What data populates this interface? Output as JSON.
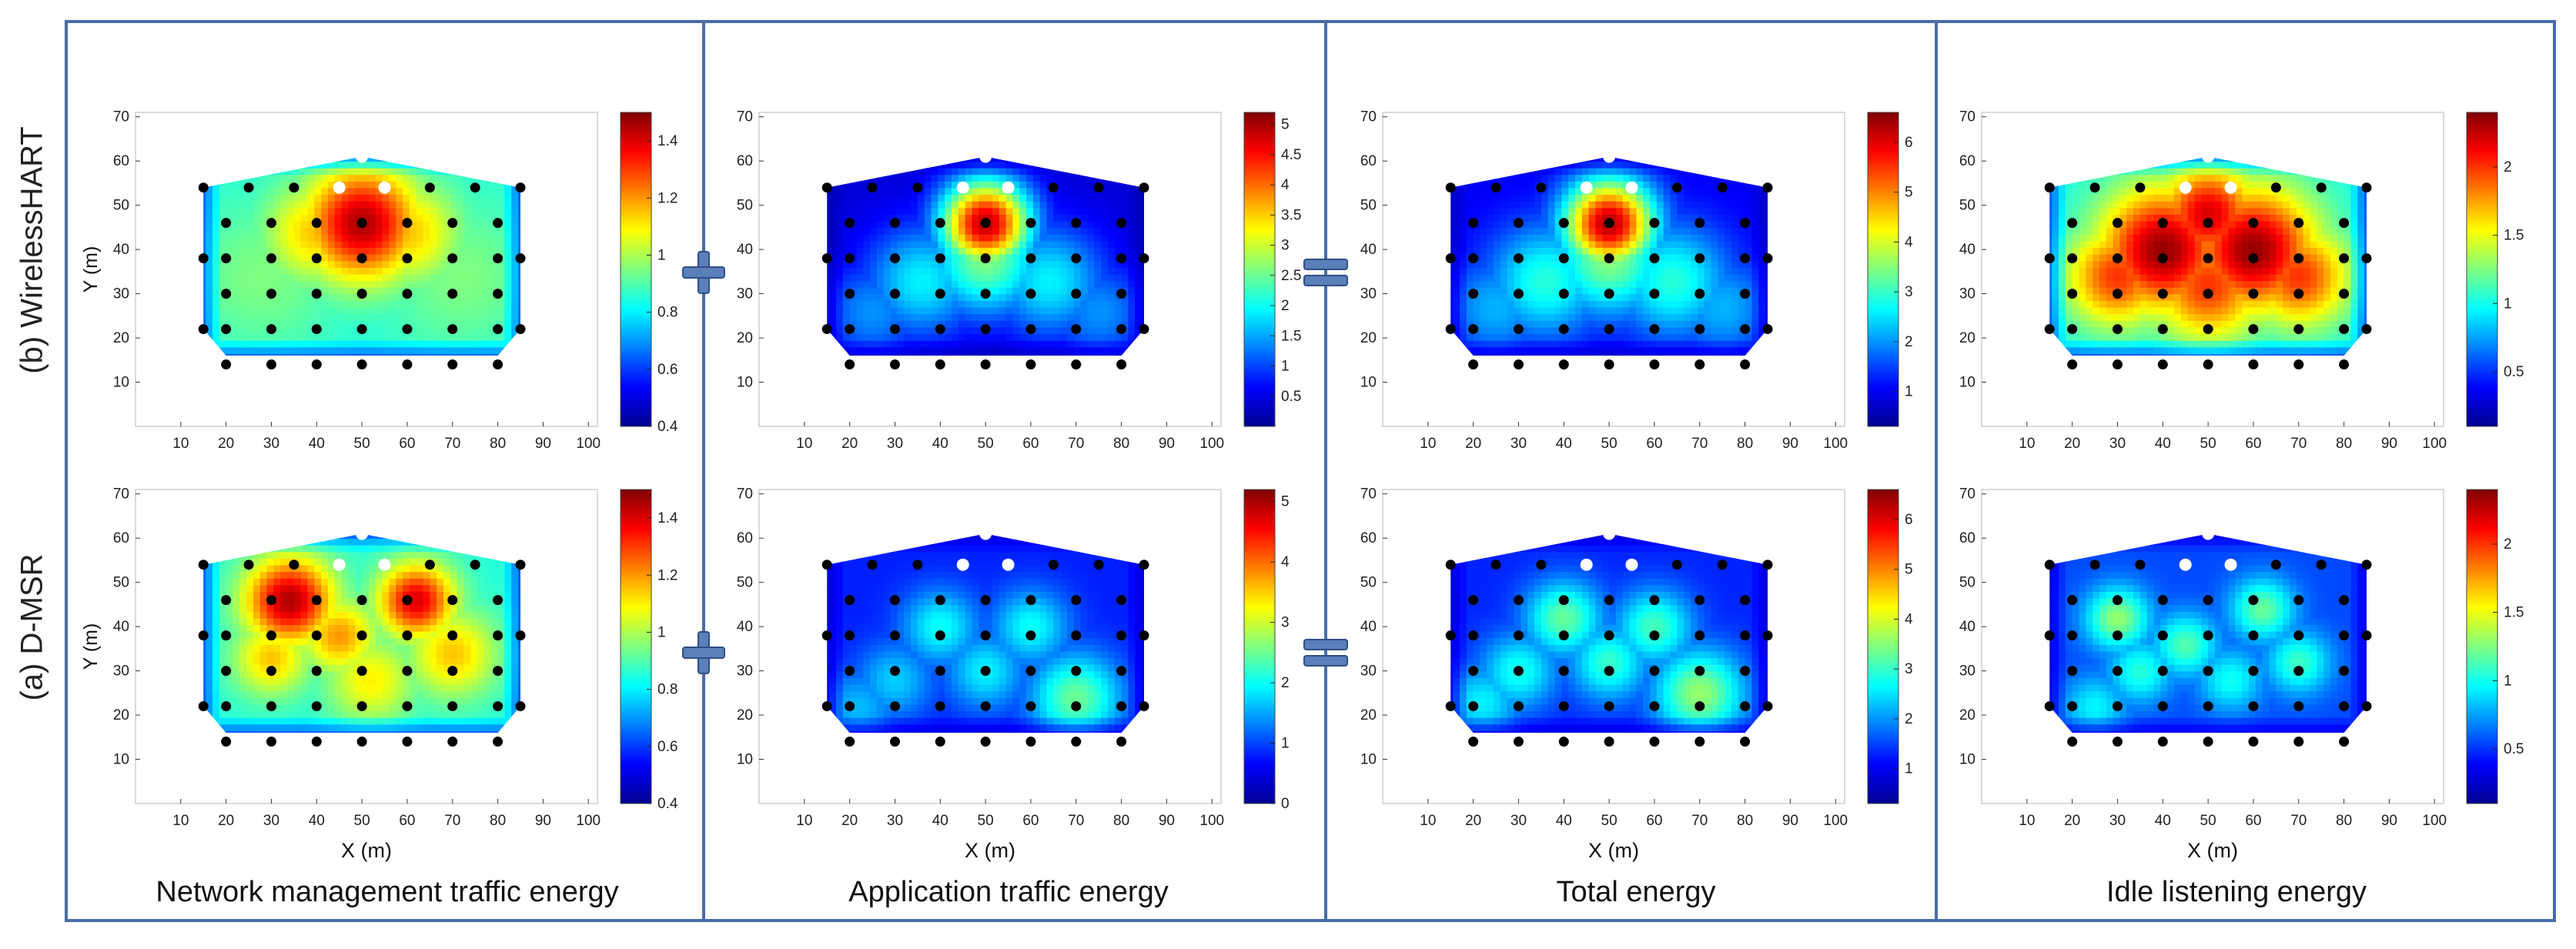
{
  "row_labels": [
    "(b) WirelessHART",
    "(a) D-MSR"
  ],
  "column_titles": [
    "Network management traffic energy",
    "Application traffic energy",
    "Total energy",
    "Idle listening energy"
  ],
  "operators": [
    "plus",
    "plus",
    "equals",
    "equals"
  ],
  "colors": {
    "frame": "#4a6da7",
    "operator_fill": "#5b7fb8",
    "operator_stroke": "#2f4f87",
    "gateway": "#ffffff",
    "node": "#000000"
  },
  "chart_data": [
    {
      "type": "heatmap",
      "id": "b-network",
      "row": "(b) WirelessHART",
      "column": "Network management traffic energy",
      "xlabel": "",
      "ylabel": "Y (m)",
      "xlim": [
        0,
        102
      ],
      "ylim": [
        0,
        71
      ],
      "xticks": [
        10,
        20,
        30,
        40,
        50,
        60,
        70,
        80,
        90,
        100
      ],
      "yticks": [
        10,
        20,
        30,
        40,
        50,
        60,
        70
      ],
      "colorbar": {
        "range": [
          0.4,
          1.5
        ],
        "ticks": [
          0.4,
          0.6,
          0.8,
          1,
          1.2,
          1.4
        ],
        "labels": [
          "0.4",
          "0.6",
          "0.8",
          "1",
          "1.2",
          "1.4"
        ]
      },
      "base": 0.85,
      "hotspots": [
        {
          "x": 50,
          "y": 46,
          "v": 1.45,
          "s": 9
        },
        {
          "x": 40,
          "y": 44,
          "v": 1.15,
          "s": 8
        },
        {
          "x": 60,
          "y": 44,
          "v": 1.15,
          "s": 8
        },
        {
          "x": 28,
          "y": 34,
          "v": 0.95,
          "s": 12
        },
        {
          "x": 72,
          "y": 34,
          "v": 0.95,
          "s": 12
        }
      ]
    },
    {
      "type": "heatmap",
      "id": "b-application",
      "row": "(b) WirelessHART",
      "column": "Application traffic energy",
      "xlabel": "",
      "ylabel": "",
      "xlim": [
        0,
        102
      ],
      "ylim": [
        0,
        71
      ],
      "xticks": [
        10,
        20,
        30,
        40,
        50,
        60,
        70,
        80,
        90,
        100
      ],
      "yticks": [
        10,
        20,
        30,
        40,
        50,
        60,
        70
      ],
      "colorbar": {
        "range": [
          0,
          5.2
        ],
        "ticks": [
          0.5,
          1,
          1.5,
          2,
          2.5,
          3,
          3.5,
          4,
          4.5,
          5
        ],
        "labels": [
          "0.5",
          "1",
          "1.5",
          "2",
          "2.5",
          "3",
          "3.5",
          "4",
          "4.5",
          "5"
        ]
      },
      "base": 0.4,
      "hotspots": [
        {
          "x": 50,
          "y": 46,
          "v": 4.9,
          "s": 7
        },
        {
          "x": 50,
          "y": 38,
          "v": 2.6,
          "s": 9
        },
        {
          "x": 36,
          "y": 33,
          "v": 1.9,
          "s": 9
        },
        {
          "x": 64,
          "y": 33,
          "v": 1.9,
          "s": 9
        },
        {
          "x": 25,
          "y": 26,
          "v": 1.4,
          "s": 8
        },
        {
          "x": 75,
          "y": 26,
          "v": 1.4,
          "s": 8
        }
      ]
    },
    {
      "type": "heatmap",
      "id": "b-total",
      "row": "(b) WirelessHART",
      "column": "Total energy",
      "xlabel": "",
      "ylabel": "",
      "xlim": [
        0,
        102
      ],
      "ylim": [
        0,
        71
      ],
      "xticks": [
        10,
        20,
        30,
        40,
        50,
        60,
        70,
        80,
        90,
        100
      ],
      "yticks": [
        10,
        20,
        30,
        40,
        50,
        60,
        70
      ],
      "colorbar": {
        "range": [
          0.3,
          6.6
        ],
        "ticks": [
          1,
          2,
          3,
          4,
          5,
          6
        ],
        "labels": [
          "1",
          "2",
          "3",
          "4",
          "5",
          "6"
        ]
      },
      "base": 1.0,
      "hotspots": [
        {
          "x": 50,
          "y": 46,
          "v": 6.3,
          "s": 7
        },
        {
          "x": 50,
          "y": 38,
          "v": 3.5,
          "s": 9
        },
        {
          "x": 36,
          "y": 33,
          "v": 2.9,
          "s": 9
        },
        {
          "x": 64,
          "y": 33,
          "v": 2.9,
          "s": 9
        },
        {
          "x": 25,
          "y": 27,
          "v": 2.2,
          "s": 8
        },
        {
          "x": 75,
          "y": 27,
          "v": 2.2,
          "s": 8
        }
      ]
    },
    {
      "type": "heatmap",
      "id": "b-idle",
      "row": "(b) WirelessHART",
      "column": "Idle listening energy",
      "xlabel": "",
      "ylabel": "",
      "xlim": [
        0,
        102
      ],
      "ylim": [
        0,
        71
      ],
      "xticks": [
        10,
        20,
        30,
        40,
        50,
        60,
        70,
        80,
        90,
        100
      ],
      "yticks": [
        10,
        20,
        30,
        40,
        50,
        60,
        70
      ],
      "colorbar": {
        "range": [
          0.1,
          2.4
        ],
        "ticks": [
          0.5,
          1,
          1.5,
          2
        ],
        "labels": [
          "0.5",
          "1",
          "1.5",
          "2"
        ]
      },
      "base": 1.0,
      "hotspots": [
        {
          "x": 40,
          "y": 40,
          "v": 2.35,
          "s": 10
        },
        {
          "x": 60,
          "y": 40,
          "v": 2.35,
          "s": 10
        },
        {
          "x": 50,
          "y": 32,
          "v": 2.0,
          "s": 9
        },
        {
          "x": 30,
          "y": 34,
          "v": 2.0,
          "s": 8
        },
        {
          "x": 70,
          "y": 34,
          "v": 2.0,
          "s": 8
        },
        {
          "x": 50,
          "y": 48,
          "v": 2.2,
          "s": 8
        }
      ]
    },
    {
      "type": "heatmap",
      "id": "a-network",
      "row": "(a) D-MSR",
      "column": "Network management traffic energy",
      "xlabel": "X (m)",
      "ylabel": "Y (m)",
      "xlim": [
        0,
        102
      ],
      "ylim": [
        0,
        71
      ],
      "xticks": [
        10,
        20,
        30,
        40,
        50,
        60,
        70,
        80,
        90,
        100
      ],
      "yticks": [
        10,
        20,
        30,
        40,
        50,
        60,
        70
      ],
      "colorbar": {
        "range": [
          0.4,
          1.5
        ],
        "ticks": [
          0.4,
          0.6,
          0.8,
          1,
          1.2,
          1.4
        ],
        "labels": [
          "0.4",
          "0.6",
          "0.8",
          "1",
          "1.2",
          "1.4"
        ]
      },
      "base": 0.85,
      "hotspots": [
        {
          "x": 34,
          "y": 46,
          "v": 1.45,
          "s": 7
        },
        {
          "x": 62,
          "y": 46,
          "v": 1.4,
          "s": 6
        },
        {
          "x": 45,
          "y": 38,
          "v": 1.2,
          "s": 6
        },
        {
          "x": 30,
          "y": 33,
          "v": 1.15,
          "s": 6
        },
        {
          "x": 70,
          "y": 34,
          "v": 1.15,
          "s": 7
        },
        {
          "x": 52,
          "y": 28,
          "v": 1.1,
          "s": 7
        }
      ]
    },
    {
      "type": "heatmap",
      "id": "a-application",
      "row": "(a) D-MSR",
      "column": "Application traffic energy",
      "xlabel": "X (m)",
      "ylabel": "",
      "xlim": [
        0,
        102
      ],
      "ylim": [
        0,
        71
      ],
      "xticks": [
        10,
        20,
        30,
        40,
        50,
        60,
        70,
        80,
        90,
        100
      ],
      "yticks": [
        10,
        20,
        30,
        40,
        50,
        60,
        70
      ],
      "colorbar": {
        "range": [
          0,
          5.2
        ],
        "ticks": [
          0,
          1,
          2,
          3,
          4,
          5
        ],
        "labels": [
          "0",
          "1",
          "2",
          "3",
          "4",
          "5"
        ]
      },
      "base": 0.8,
      "hotspots": [
        {
          "x": 40,
          "y": 40,
          "v": 2.0,
          "s": 6
        },
        {
          "x": 60,
          "y": 40,
          "v": 2.0,
          "s": 6
        },
        {
          "x": 50,
          "y": 30,
          "v": 1.9,
          "s": 6
        },
        {
          "x": 30,
          "y": 28,
          "v": 1.7,
          "s": 6
        },
        {
          "x": 70,
          "y": 24,
          "v": 2.5,
          "s": 7
        },
        {
          "x": 22,
          "y": 22,
          "v": 1.6,
          "s": 6
        }
      ]
    },
    {
      "type": "heatmap",
      "id": "a-total",
      "row": "(a) D-MSR",
      "column": "Total energy",
      "xlabel": "X (m)",
      "ylabel": "",
      "xlim": [
        0,
        102
      ],
      "ylim": [
        0,
        71
      ],
      "xticks": [
        10,
        20,
        30,
        40,
        50,
        60,
        70,
        80,
        90,
        100
      ],
      "yticks": [
        10,
        20,
        30,
        40,
        50,
        60,
        70
      ],
      "colorbar": {
        "range": [
          0.3,
          6.6
        ],
        "ticks": [
          1,
          2,
          3,
          4,
          5,
          6
        ],
        "labels": [
          "1",
          "2",
          "3",
          "4",
          "5",
          "6"
        ]
      },
      "base": 1.3,
      "hotspots": [
        {
          "x": 40,
          "y": 42,
          "v": 3.3,
          "s": 6
        },
        {
          "x": 60,
          "y": 40,
          "v": 3.1,
          "s": 6
        },
        {
          "x": 50,
          "y": 32,
          "v": 3.0,
          "s": 6
        },
        {
          "x": 30,
          "y": 30,
          "v": 2.8,
          "s": 6
        },
        {
          "x": 70,
          "y": 25,
          "v": 3.6,
          "s": 7
        },
        {
          "x": 22,
          "y": 23,
          "v": 2.6,
          "s": 6
        }
      ]
    },
    {
      "type": "heatmap",
      "id": "a-idle",
      "row": "(a) D-MSR",
      "column": "Idle listening energy",
      "xlabel": "X (m)",
      "ylabel": "",
      "xlim": [
        0,
        102
      ],
      "ylim": [
        0,
        71
      ],
      "xticks": [
        10,
        20,
        30,
        40,
        50,
        60,
        70,
        80,
        90,
        100
      ],
      "yticks": [
        10,
        20,
        30,
        40,
        50,
        60,
        70
      ],
      "colorbar": {
        "range": [
          0.1,
          2.4
        ],
        "ticks": [
          0.5,
          1,
          1.5,
          2
        ],
        "labels": [
          "0.5",
          "1",
          "1.5",
          "2"
        ]
      },
      "base": 0.55,
      "hotspots": [
        {
          "x": 30,
          "y": 42,
          "v": 1.3,
          "s": 5
        },
        {
          "x": 45,
          "y": 36,
          "v": 1.15,
          "s": 5
        },
        {
          "x": 62,
          "y": 44,
          "v": 1.2,
          "s": 5
        },
        {
          "x": 70,
          "y": 32,
          "v": 1.1,
          "s": 5
        },
        {
          "x": 35,
          "y": 30,
          "v": 1.05,
          "s": 5
        },
        {
          "x": 55,
          "y": 28,
          "v": 1.0,
          "s": 5
        },
        {
          "x": 25,
          "y": 22,
          "v": 0.95,
          "s": 5
        }
      ]
    }
  ]
}
